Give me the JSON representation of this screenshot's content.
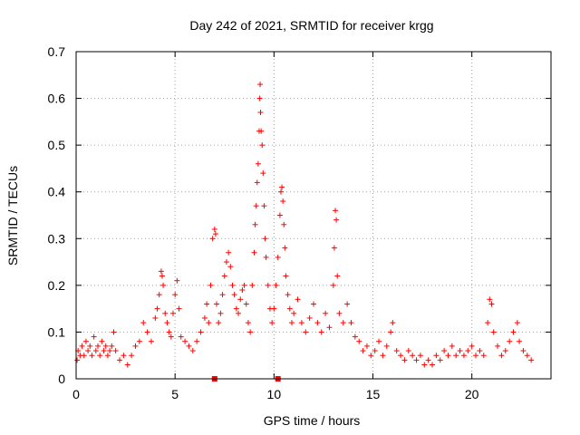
{
  "chart_data": {
    "type": "scatter",
    "title": "Day 242 of 2021, SRMTID for receiver krgg",
    "xlabel": "GPS time / hours",
    "ylabel": "SRMTID / TECUs",
    "xlim": [
      0,
      24
    ],
    "ylim": [
      0,
      0.7
    ],
    "x_ticks": [
      0,
      5,
      10,
      15,
      20
    ],
    "x_tick_labels": [
      "0",
      "5",
      "10",
      "15",
      "20"
    ],
    "y_ticks": [
      0,
      0.1,
      0.2,
      0.3,
      0.4,
      0.5,
      0.6,
      0.7
    ],
    "y_tick_labels": [
      "0",
      "0.1",
      "0.2",
      "0.3",
      "0.4",
      "0.5",
      "0.6",
      "0.7"
    ],
    "grid": true,
    "marker": "+",
    "marker_color": "#ff0000",
    "series": [
      {
        "name": "SRMTID",
        "color": "#ff0000",
        "marker": "+",
        "points": [
          [
            0.05,
            0.04
          ],
          [
            0.1,
            0.06
          ],
          [
            0.2,
            0.05
          ],
          [
            0.3,
            0.07
          ],
          [
            0.4,
            0.05
          ],
          [
            0.5,
            0.08
          ],
          [
            0.6,
            0.06
          ],
          [
            0.7,
            0.07
          ],
          [
            0.8,
            0.05
          ],
          [
            0.9,
            0.09
          ],
          [
            1.0,
            0.06
          ],
          [
            1.1,
            0.07
          ],
          [
            1.2,
            0.05
          ],
          [
            1.3,
            0.08
          ],
          [
            1.4,
            0.06
          ],
          [
            1.5,
            0.07
          ],
          [
            1.6,
            0.05
          ],
          [
            1.7,
            0.06
          ],
          [
            1.8,
            0.07
          ],
          [
            1.9,
            0.1
          ],
          [
            2.0,
            0.06
          ],
          [
            2.2,
            0.04
          ],
          [
            2.4,
            0.05
          ],
          [
            2.6,
            0.03
          ],
          [
            2.8,
            0.05
          ],
          [
            3.0,
            0.07
          ],
          [
            3.2,
            0.08
          ],
          [
            3.4,
            0.12
          ],
          [
            3.6,
            0.1
          ],
          [
            3.8,
            0.08
          ],
          [
            4.0,
            0.13
          ],
          [
            4.1,
            0.15
          ],
          [
            4.2,
            0.18
          ],
          [
            4.3,
            0.23
          ],
          [
            4.35,
            0.22
          ],
          [
            4.4,
            0.2
          ],
          [
            4.5,
            0.14
          ],
          [
            4.6,
            0.12
          ],
          [
            4.7,
            0.1
          ],
          [
            4.8,
            0.09
          ],
          [
            4.9,
            0.14
          ],
          [
            5.0,
            0.18
          ],
          [
            5.1,
            0.21
          ],
          [
            5.2,
            0.15
          ],
          [
            5.3,
            0.09
          ],
          [
            5.5,
            0.08
          ],
          [
            5.7,
            0.07
          ],
          [
            5.9,
            0.06
          ],
          [
            6.1,
            0.08
          ],
          [
            6.3,
            0.1
          ],
          [
            6.5,
            0.13
          ],
          [
            6.6,
            0.16
          ],
          [
            6.7,
            0.12
          ],
          [
            6.8,
            0.2
          ],
          [
            6.9,
            0.3
          ],
          [
            7.0,
            0.32
          ],
          [
            7.05,
            0.31
          ],
          [
            7.1,
            0.16
          ],
          [
            7.2,
            0.12
          ],
          [
            7.3,
            0.14
          ],
          [
            7.4,
            0.18
          ],
          [
            7.5,
            0.22
          ],
          [
            7.6,
            0.25
          ],
          [
            7.7,
            0.27
          ],
          [
            7.8,
            0.24
          ],
          [
            7.9,
            0.2
          ],
          [
            8.0,
            0.18
          ],
          [
            8.1,
            0.15
          ],
          [
            8.2,
            0.14
          ],
          [
            8.3,
            0.17
          ],
          [
            8.4,
            0.19
          ],
          [
            8.5,
            0.2
          ],
          [
            8.6,
            0.16
          ],
          [
            8.7,
            0.12
          ],
          [
            8.8,
            0.1
          ],
          [
            8.9,
            0.2
          ],
          [
            9.0,
            0.27
          ],
          [
            9.05,
            0.33
          ],
          [
            9.1,
            0.37
          ],
          [
            9.15,
            0.42
          ],
          [
            9.2,
            0.46
          ],
          [
            9.25,
            0.53
          ],
          [
            9.28,
            0.6
          ],
          [
            9.3,
            0.63
          ],
          [
            9.32,
            0.57
          ],
          [
            9.35,
            0.53
          ],
          [
            9.4,
            0.5
          ],
          [
            9.45,
            0.44
          ],
          [
            9.5,
            0.37
          ],
          [
            9.55,
            0.3
          ],
          [
            9.6,
            0.26
          ],
          [
            9.7,
            0.2
          ],
          [
            9.8,
            0.15
          ],
          [
            9.9,
            0.12
          ],
          [
            10.0,
            0.15
          ],
          [
            10.1,
            0.2
          ],
          [
            10.2,
            0.26
          ],
          [
            10.3,
            0.35
          ],
          [
            10.35,
            0.4
          ],
          [
            10.4,
            0.41
          ],
          [
            10.45,
            0.38
          ],
          [
            10.5,
            0.33
          ],
          [
            10.55,
            0.28
          ],
          [
            10.6,
            0.22
          ],
          [
            10.7,
            0.18
          ],
          [
            10.8,
            0.15
          ],
          [
            10.9,
            0.12
          ],
          [
            11.0,
            0.14
          ],
          [
            11.2,
            0.17
          ],
          [
            11.4,
            0.12
          ],
          [
            11.6,
            0.1
          ],
          [
            11.8,
            0.13
          ],
          [
            12.0,
            0.16
          ],
          [
            12.2,
            0.12
          ],
          [
            12.4,
            0.1
          ],
          [
            12.6,
            0.14
          ],
          [
            12.8,
            0.11
          ],
          [
            13.0,
            0.2
          ],
          [
            13.05,
            0.28
          ],
          [
            13.1,
            0.36
          ],
          [
            13.15,
            0.34
          ],
          [
            13.2,
            0.22
          ],
          [
            13.3,
            0.14
          ],
          [
            13.5,
            0.12
          ],
          [
            13.7,
            0.16
          ],
          [
            13.9,
            0.12
          ],
          [
            14.1,
            0.09
          ],
          [
            14.3,
            0.08
          ],
          [
            14.5,
            0.06
          ],
          [
            14.7,
            0.07
          ],
          [
            14.9,
            0.05
          ],
          [
            15.1,
            0.06
          ],
          [
            15.3,
            0.08
          ],
          [
            15.5,
            0.05
          ],
          [
            15.7,
            0.07
          ],
          [
            15.9,
            0.1
          ],
          [
            16.0,
            0.12
          ],
          [
            16.2,
            0.06
          ],
          [
            16.4,
            0.05
          ],
          [
            16.6,
            0.04
          ],
          [
            16.8,
            0.06
          ],
          [
            17.0,
            0.05
          ],
          [
            17.2,
            0.04
          ],
          [
            17.4,
            0.05
          ],
          [
            17.6,
            0.03
          ],
          [
            17.8,
            0.04
          ],
          [
            18.0,
            0.03
          ],
          [
            18.2,
            0.05
          ],
          [
            18.4,
            0.04
          ],
          [
            18.6,
            0.06
          ],
          [
            18.8,
            0.05
          ],
          [
            19.0,
            0.07
          ],
          [
            19.2,
            0.05
          ],
          [
            19.4,
            0.06
          ],
          [
            19.6,
            0.05
          ],
          [
            19.8,
            0.06
          ],
          [
            20.0,
            0.07
          ],
          [
            20.2,
            0.05
          ],
          [
            20.4,
            0.06
          ],
          [
            20.6,
            0.05
          ],
          [
            20.8,
            0.12
          ],
          [
            20.9,
            0.17
          ],
          [
            21.0,
            0.16
          ],
          [
            21.1,
            0.1
          ],
          [
            21.3,
            0.07
          ],
          [
            21.5,
            0.05
          ],
          [
            21.7,
            0.06
          ],
          [
            21.9,
            0.08
          ],
          [
            22.1,
            0.1
          ],
          [
            22.3,
            0.12
          ],
          [
            22.4,
            0.08
          ],
          [
            22.6,
            0.06
          ],
          [
            22.8,
            0.05
          ],
          [
            23.0,
            0.04
          ]
        ]
      }
    ],
    "special_markers": [
      [
        7.0,
        0.0
      ],
      [
        10.2,
        0.0
      ]
    ]
  }
}
